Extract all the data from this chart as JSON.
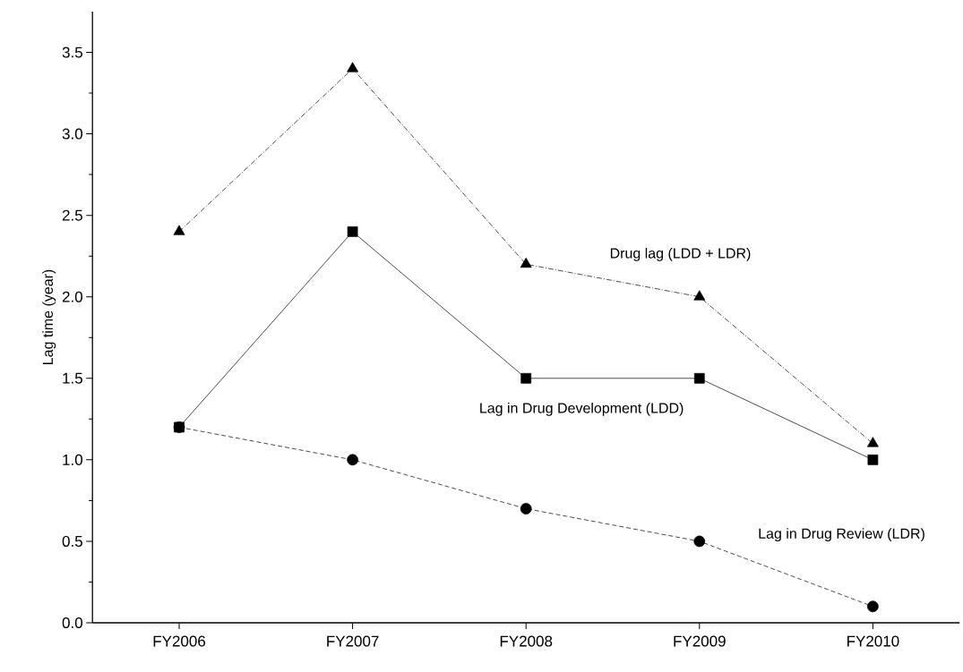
{
  "chart_data": {
    "type": "line",
    "ylabel": "Lag time (year)",
    "categories": [
      "FY2006",
      "FY2007",
      "FY2008",
      "FY2009",
      "FY2010"
    ],
    "series": [
      {
        "name": "Drug lag (LDD + LDR)",
        "color": "#000000",
        "marker": "triangle",
        "line_style": "dashdot",
        "values": [
          2.4,
          3.4,
          2.2,
          2.0,
          1.1
        ]
      },
      {
        "name": "Lag in Drug Development (LDD)",
        "color": "#000000",
        "marker": "square",
        "line_style": "solid",
        "values": [
          1.2,
          2.4,
          1.5,
          1.5,
          1.0
        ]
      },
      {
        "name": "Lag in Drug Review (LDR)",
        "color": "#000000",
        "marker": "circle",
        "line_style": "dashed",
        "values": [
          1.2,
          1.0,
          0.7,
          0.5,
          0.1
        ]
      }
    ],
    "ylim": [
      0,
      3.75
    ],
    "yticks": [
      {
        "value": 0,
        "label": "0.0"
      },
      {
        "value": 0.5,
        "label": "0.5"
      },
      {
        "value": 1,
        "label": "1.0"
      },
      {
        "value": 1.5,
        "label": "1.5"
      },
      {
        "value": 2,
        "label": "2.0"
      },
      {
        "value": 2.5,
        "label": "2.5"
      },
      {
        "value": 3,
        "label": "3.0"
      },
      {
        "value": 3.5,
        "label": "3.5"
      }
    ],
    "grid": false,
    "legend": false
  }
}
